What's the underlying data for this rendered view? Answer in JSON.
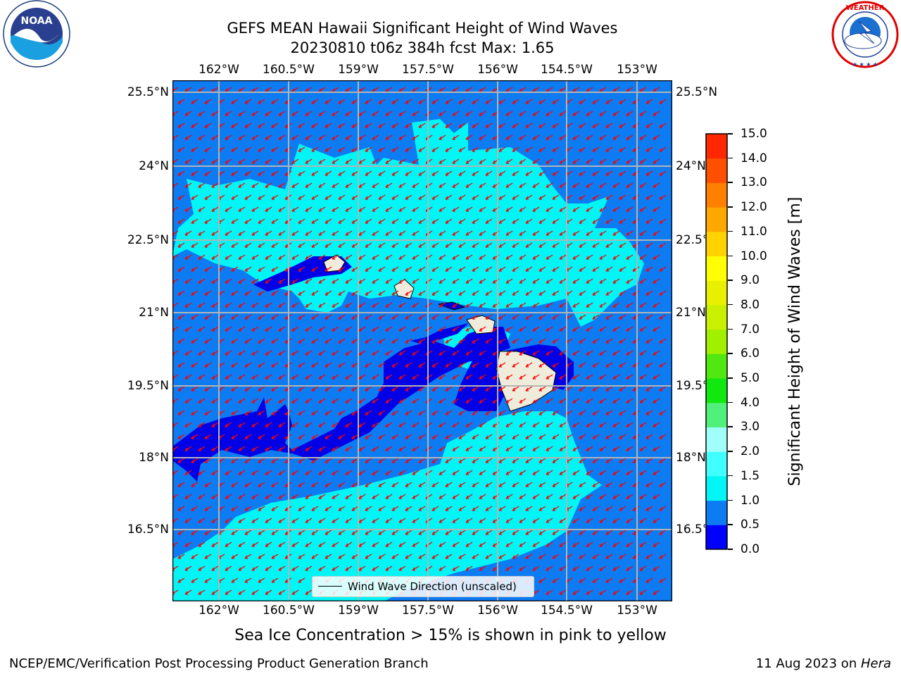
{
  "header": {
    "title_line1": "GEFS MEAN Hawaii Significant Height of Wind Waves",
    "title_line2": "20230810 t06z 384h fcst   Max: 1.65"
  },
  "logos": {
    "left": {
      "name": "NOAA",
      "text": "NOAA",
      "ring_text": "NATIONAL OCEANIC AND ATMOSPHERIC ADMINISTRATION · U.S. DEPARTMENT OF COMMERCE"
    },
    "right": {
      "name": "National Weather Service",
      "ring_text": "NATIONAL WEATHER SERVICE"
    }
  },
  "map": {
    "lon_labels": [
      "162°W",
      "160.5°W",
      "159°W",
      "157.5°W",
      "156°W",
      "154.5°W",
      "153°W"
    ],
    "lat_labels": [
      "25.5°N",
      "24°N",
      "22.5°N",
      "21°N",
      "19.5°N",
      "18°N",
      "16.5°N"
    ],
    "colors": {
      "ocean_mid": "#0d7bf2",
      "ocean_low": "#0000e6",
      "ocean_high": "#00ffee",
      "land": "#efecdc",
      "arrow": "#ff0000",
      "grid": "#b4b4b4"
    },
    "legend_label": "Wind Wave Direction (unscaled)"
  },
  "colorbar": {
    "title": "Significant Height of Wind Waves [m]",
    "ticks": [
      "0.0",
      "0.5",
      "1.0",
      "1.5",
      "2.0",
      "3.0",
      "4.0",
      "5.0",
      "6.0",
      "7.0",
      "8.0",
      "9.0",
      "10.0",
      "11.0",
      "12.0",
      "13.0",
      "14.0",
      "15.0"
    ],
    "colors": [
      "#0000ff",
      "#0d7bf2",
      "#00f5f5",
      "#40ffff",
      "#a0fff8",
      "#50f07a",
      "#10e810",
      "#50e810",
      "#a0f000",
      "#c8f000",
      "#e8f000",
      "#ffff00",
      "#ffd200",
      "#ffa800",
      "#ff8000",
      "#ff5000",
      "#ff2800",
      "#ff0000"
    ]
  },
  "notes": {
    "sea_ice": "Sea Ice Concentration > 15% is shown in pink to yellow"
  },
  "footer": {
    "left": "NCEP/EMC/Verification Post Processing Product Generation Branch",
    "right_date": "11 Aug 2023 on ",
    "right_host": "Hera"
  }
}
